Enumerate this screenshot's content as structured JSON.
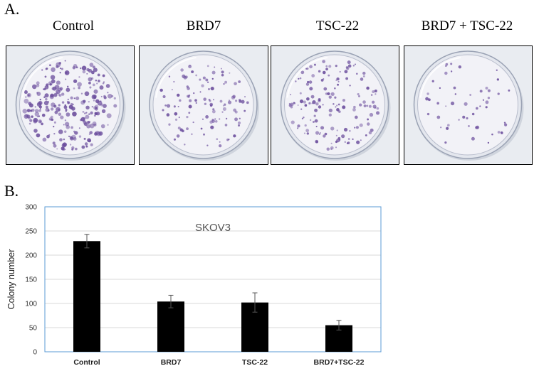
{
  "figure": {
    "panel_a_label": "A.",
    "panel_b_label": "B.",
    "plates": [
      {
        "label": "Control",
        "colony_density": 1.0
      },
      {
        "label": "BRD7",
        "colony_density": 0.45
      },
      {
        "label": "TSC-22",
        "colony_density": 0.6
      },
      {
        "label": "BRD7 + TSC-22",
        "colony_density": 0.2
      }
    ]
  },
  "colors": {
    "bar": "#000000",
    "axis_frame": "#5b9bd5",
    "gridline": "#d9d9d9",
    "colony": "#6a4c9c"
  },
  "chart_data": {
    "type": "bar",
    "title": "SKOV3",
    "xlabel": "",
    "ylabel": "Colony number",
    "categories": [
      "Control",
      "BRD7",
      "TSC-22",
      "BRD7+TSC-22"
    ],
    "values": [
      229,
      104,
      102,
      55
    ],
    "errors": [
      14,
      13,
      20,
      10
    ],
    "ylim": [
      0,
      300
    ],
    "yticks": [
      "0",
      "50",
      "100",
      "150",
      "200",
      "250",
      "300"
    ],
    "grid": true,
    "legend": "none"
  }
}
